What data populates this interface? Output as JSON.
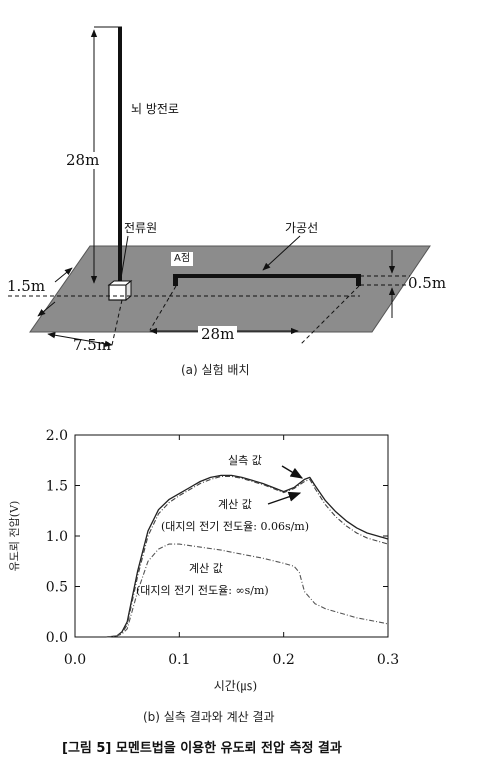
{
  "figure_title": "[그림 5] 모멘트법을 이용한 유도뢰 전압 측정 결과",
  "setup": {
    "caption": "(a) 실험 배치",
    "label_stroke": "뇌 방전로",
    "label_height": "28m",
    "label_source": "전류원",
    "label_wire": "가공선",
    "label_point_a": "A점",
    "label_left_offset": "1.5m",
    "label_wire_height": "0.5m",
    "label_depth": "7.5m",
    "label_wire_length": "28m",
    "ground_color": "#8c8c8c"
  },
  "chart_caption": "(b) 실측 결과와 계산 결과",
  "chart_data": {
    "type": "line",
    "xlabel": "시간(㎲)",
    "ylabel": "유도뢰 전압(V)",
    "xlim": [
      0.0,
      0.3
    ],
    "ylim": [
      0.0,
      2.0
    ],
    "xticks": [
      "0.0",
      "0.1",
      "0.2",
      "0.3"
    ],
    "yticks": [
      "0.0",
      "0.5",
      "1.0",
      "1.5",
      "2.0"
    ],
    "grid": false,
    "annotations": [
      {
        "text": "실측 값"
      },
      {
        "text": "계산 값"
      },
      {
        "text": "(대지의 전기 전도율: 0.06s/m)"
      },
      {
        "text": "계산 값"
      },
      {
        "text": "(대지의 전기 전도율: ∞s/m)"
      }
    ],
    "series": [
      {
        "name": "실측 값",
        "x": [
          0.03,
          0.04,
          0.045,
          0.05,
          0.06,
          0.07,
          0.08,
          0.09,
          0.1,
          0.11,
          0.12,
          0.13,
          0.14,
          0.15,
          0.16,
          0.17,
          0.18,
          0.19,
          0.2,
          0.21,
          0.22,
          0.225,
          0.23,
          0.24,
          0.25,
          0.26,
          0.27,
          0.28,
          0.29,
          0.3
        ],
        "y": [
          0.0,
          0.01,
          0.05,
          0.15,
          0.65,
          1.05,
          1.26,
          1.36,
          1.42,
          1.48,
          1.54,
          1.58,
          1.6,
          1.6,
          1.58,
          1.55,
          1.52,
          1.48,
          1.44,
          1.48,
          1.56,
          1.58,
          1.5,
          1.35,
          1.24,
          1.15,
          1.08,
          1.03,
          1.0,
          0.97
        ]
      },
      {
        "name": "계산 값 (대지의 전기 전도율: 0.06s/m)",
        "x": [
          0.03,
          0.04,
          0.045,
          0.05,
          0.06,
          0.07,
          0.08,
          0.09,
          0.1,
          0.11,
          0.12,
          0.13,
          0.14,
          0.15,
          0.16,
          0.17,
          0.18,
          0.19,
          0.2,
          0.21,
          0.22,
          0.225,
          0.23,
          0.24,
          0.25,
          0.26,
          0.27,
          0.28,
          0.29,
          0.3
        ],
        "y": [
          0.0,
          0.01,
          0.04,
          0.12,
          0.6,
          1.0,
          1.22,
          1.33,
          1.4,
          1.46,
          1.52,
          1.56,
          1.59,
          1.59,
          1.57,
          1.54,
          1.51,
          1.47,
          1.43,
          1.47,
          1.54,
          1.56,
          1.47,
          1.31,
          1.19,
          1.1,
          1.03,
          0.98,
          0.95,
          0.92
        ]
      },
      {
        "name": "계산 값 (대지의 전기 전도율: ∞s/m)",
        "x": [
          0.03,
          0.04,
          0.045,
          0.05,
          0.06,
          0.07,
          0.08,
          0.09,
          0.1,
          0.12,
          0.14,
          0.16,
          0.18,
          0.2,
          0.21,
          0.215,
          0.22,
          0.23,
          0.24,
          0.25,
          0.26,
          0.27,
          0.28,
          0.29,
          0.3
        ],
        "y": [
          0.0,
          0.01,
          0.03,
          0.08,
          0.45,
          0.75,
          0.87,
          0.92,
          0.92,
          0.89,
          0.86,
          0.82,
          0.78,
          0.73,
          0.7,
          0.64,
          0.45,
          0.33,
          0.28,
          0.25,
          0.22,
          0.19,
          0.17,
          0.15,
          0.13
        ]
      }
    ]
  }
}
